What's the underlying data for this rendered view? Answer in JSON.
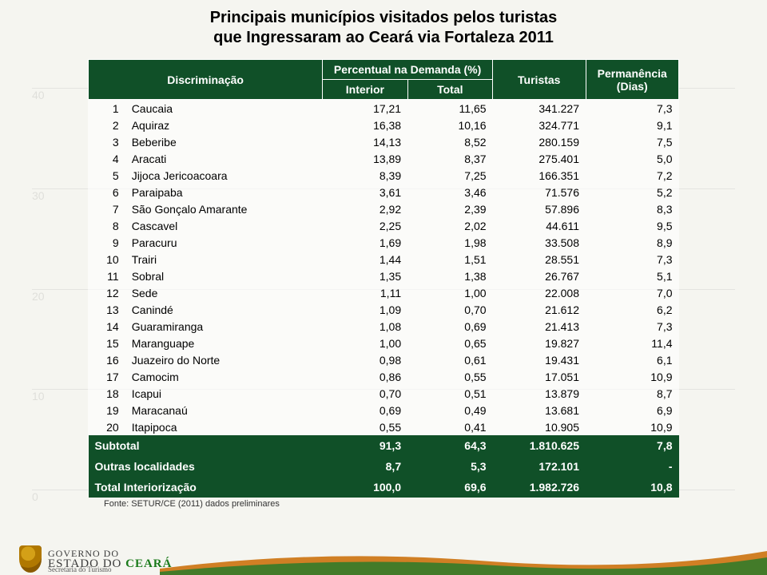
{
  "title": {
    "line1": "Principais municípios visitados pelos turistas",
    "line2": "que Ingressaram ao Ceará via Fortaleza 2011"
  },
  "headers": {
    "disc": "Discriminação",
    "perc_group": "Percentual na Demanda (%)",
    "interior": "Interior",
    "total": "Total",
    "turistas": "Turistas",
    "perm": "Permanência (Dias)"
  },
  "rows": [
    {
      "rank": "1",
      "name": "Caucaia",
      "interior": "17,21",
      "total": "11,65",
      "turistas": "341.227",
      "perm": "7,3"
    },
    {
      "rank": "2",
      "name": "Aquiraz",
      "interior": "16,38",
      "total": "10,16",
      "turistas": "324.771",
      "perm": "9,1"
    },
    {
      "rank": "3",
      "name": "Beberibe",
      "interior": "14,13",
      "total": "8,52",
      "turistas": "280.159",
      "perm": "7,5"
    },
    {
      "rank": "4",
      "name": "Aracati",
      "interior": "13,89",
      "total": "8,37",
      "turistas": "275.401",
      "perm": "5,0"
    },
    {
      "rank": "5",
      "name": "Jijoca Jericoacoara",
      "interior": "8,39",
      "total": "7,25",
      "turistas": "166.351",
      "perm": "7,2"
    },
    {
      "rank": "6",
      "name": "Paraipaba",
      "interior": "3,61",
      "total": "3,46",
      "turistas": "71.576",
      "perm": "5,2"
    },
    {
      "rank": "7",
      "name": "São Gonçalo Amarante",
      "interior": "2,92",
      "total": "2,39",
      "turistas": "57.896",
      "perm": "8,3"
    },
    {
      "rank": "8",
      "name": "Cascavel",
      "interior": "2,25",
      "total": "2,02",
      "turistas": "44.611",
      "perm": "9,5"
    },
    {
      "rank": "9",
      "name": "Paracuru",
      "interior": "1,69",
      "total": "1,98",
      "turistas": "33.508",
      "perm": "8,9"
    },
    {
      "rank": "10",
      "name": "Trairi",
      "interior": "1,44",
      "total": "1,51",
      "turistas": "28.551",
      "perm": "7,3"
    },
    {
      "rank": "11",
      "name": "Sobral",
      "interior": "1,35",
      "total": "1,38",
      "turistas": "26.767",
      "perm": "5,1"
    },
    {
      "rank": "12",
      "name": "Sede",
      "interior": "1,11",
      "total": "1,00",
      "turistas": "22.008",
      "perm": "7,0"
    },
    {
      "rank": "13",
      "name": "Canindé",
      "interior": "1,09",
      "total": "0,70",
      "turistas": "21.612",
      "perm": "6,2"
    },
    {
      "rank": "14",
      "name": "Guaramiranga",
      "interior": "1,08",
      "total": "0,69",
      "turistas": "21.413",
      "perm": "7,3"
    },
    {
      "rank": "15",
      "name": "Maranguape",
      "interior": "1,00",
      "total": "0,65",
      "turistas": "19.827",
      "perm": "11,4"
    },
    {
      "rank": "16",
      "name": "Juazeiro do Norte",
      "interior": "0,98",
      "total": "0,61",
      "turistas": "19.431",
      "perm": "6,1"
    },
    {
      "rank": "17",
      "name": "Camocim",
      "interior": "0,86",
      "total": "0,55",
      "turistas": "17.051",
      "perm": "10,9"
    },
    {
      "rank": "18",
      "name": "Icapui",
      "interior": "0,70",
      "total": "0,51",
      "turistas": "13.879",
      "perm": "8,7"
    },
    {
      "rank": "19",
      "name": "Maracanaú",
      "interior": "0,69",
      "total": "0,49",
      "turistas": "13.681",
      "perm": "6,9"
    },
    {
      "rank": "20",
      "name": "Itapipoca",
      "interior": "0,55",
      "total": "0,41",
      "turistas": "10.905",
      "perm": "10,9"
    }
  ],
  "summary": [
    {
      "name": "Subtotal",
      "interior": "91,3",
      "total": "64,3",
      "turistas": "1.810.625",
      "perm": "7,8"
    },
    {
      "name": "Outras localidades",
      "interior": "8,7",
      "total": "5,3",
      "turistas": "172.101",
      "perm": "-"
    },
    {
      "name": "Total Interiorização",
      "interior": "100,0",
      "total": "69,6",
      "turistas": "1.982.726",
      "perm": "10,8"
    }
  ],
  "footnote": "Fonte: SETUR/CE (2011) dados preliminares",
  "bgAxis": [
    "40",
    "30",
    "20",
    "10",
    "0"
  ],
  "colors": {
    "header_bg": "#105028",
    "header_fg": "#ffffff",
    "page_bg": "#f5f5f0",
    "logo_green": "#1a7a1a",
    "curve1": "#c96a00",
    "curve2": "#2a7a2a"
  },
  "footer": {
    "gov_line1": "Governo do",
    "gov_line2a": "Estado ",
    "gov_line2b": "do ",
    "gov_line2c": "Ceará",
    "sub": "Secretaria do Turismo"
  }
}
